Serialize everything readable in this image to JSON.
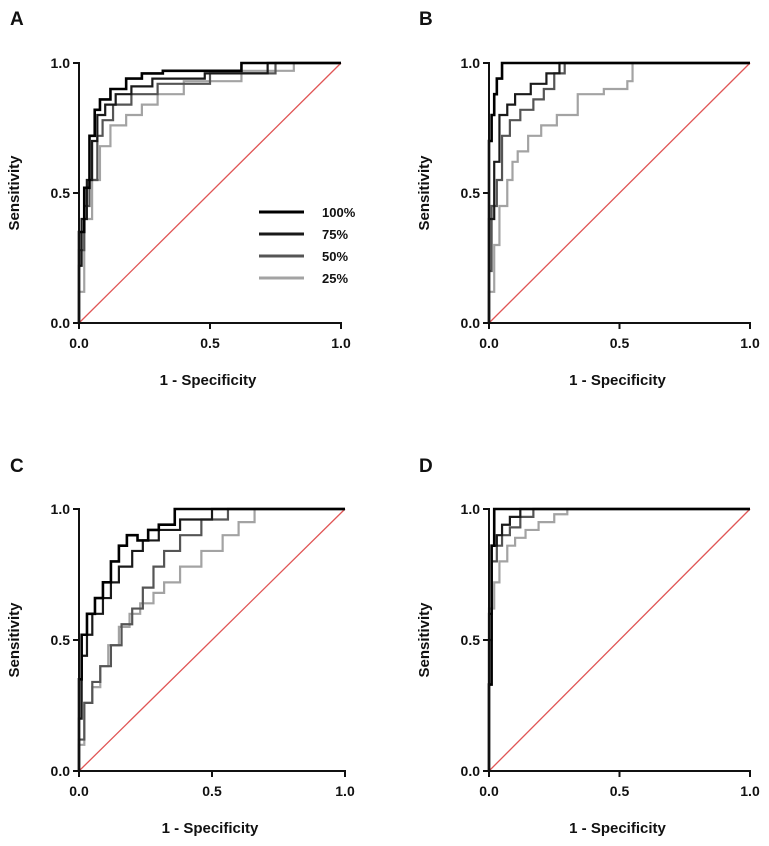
{
  "colors": {
    "series_100": "#000000",
    "series_75": "#1a1a1a",
    "series_50": "#555555",
    "series_25": "#a3a3a3",
    "reference": "#e05555"
  },
  "chart_data": [
    {
      "panel": "A",
      "type": "line",
      "xlabel": "1 - Specificity",
      "ylabel": "Sensitivity",
      "xlim": [
        0,
        1
      ],
      "ylim": [
        0,
        1
      ],
      "xticks": [
        "0.0",
        "0.5",
        "1.0"
      ],
      "yticks": [
        "0.0",
        "0.5",
        "1.0"
      ],
      "grid": false,
      "legend": {
        "placement": "right-center",
        "entries": [
          "100%",
          "75%",
          "50%",
          "25%"
        ]
      },
      "reference_line": {
        "x": [
          0,
          1
        ],
        "y": [
          0,
          1
        ]
      },
      "series": [
        {
          "name": "100%",
          "x": [
            0,
            0,
            0.02,
            0.02,
            0.04,
            0.04,
            0.06,
            0.06,
            0.08,
            0.08,
            0.12,
            0.12,
            0.18,
            0.18,
            0.24,
            0.24,
            0.32,
            0.32,
            0.62,
            0.62,
            1.0
          ],
          "y": [
            0,
            0.35,
            0.35,
            0.52,
            0.52,
            0.72,
            0.72,
            0.82,
            0.82,
            0.86,
            0.86,
            0.9,
            0.9,
            0.94,
            0.94,
            0.96,
            0.96,
            0.97,
            0.97,
            1.0,
            1.0
          ]
        },
        {
          "name": "75%",
          "x": [
            0,
            0,
            0.01,
            0.01,
            0.03,
            0.03,
            0.05,
            0.05,
            0.07,
            0.07,
            0.1,
            0.1,
            0.14,
            0.14,
            0.2,
            0.2,
            0.28,
            0.28,
            0.48,
            0.48,
            0.72,
            0.72,
            1.0
          ],
          "y": [
            0,
            0.22,
            0.22,
            0.4,
            0.4,
            0.55,
            0.55,
            0.7,
            0.7,
            0.8,
            0.8,
            0.84,
            0.84,
            0.88,
            0.88,
            0.91,
            0.91,
            0.94,
            0.94,
            0.96,
            0.96,
            1.0,
            1.0
          ]
        },
        {
          "name": "50%",
          "x": [
            0,
            0,
            0.02,
            0.02,
            0.04,
            0.04,
            0.07,
            0.07,
            0.09,
            0.09,
            0.13,
            0.13,
            0.2,
            0.2,
            0.3,
            0.3,
            0.5,
            0.5,
            0.75,
            0.75,
            1.0
          ],
          "y": [
            0,
            0.28,
            0.28,
            0.45,
            0.45,
            0.55,
            0.55,
            0.72,
            0.72,
            0.78,
            0.78,
            0.84,
            0.84,
            0.88,
            0.88,
            0.92,
            0.92,
            0.96,
            0.96,
            1.0,
            1.0
          ]
        },
        {
          "name": "25%",
          "x": [
            0,
            0,
            0.02,
            0.02,
            0.05,
            0.05,
            0.08,
            0.08,
            0.12,
            0.12,
            0.18,
            0.18,
            0.24,
            0.24,
            0.3,
            0.3,
            0.4,
            0.4,
            0.62,
            0.62,
            0.82,
            0.82,
            1.0
          ],
          "y": [
            0,
            0.12,
            0.12,
            0.4,
            0.4,
            0.55,
            0.55,
            0.68,
            0.68,
            0.76,
            0.76,
            0.8,
            0.8,
            0.84,
            0.84,
            0.88,
            0.88,
            0.93,
            0.93,
            0.97,
            0.97,
            1.0,
            1.0
          ]
        }
      ]
    },
    {
      "panel": "B",
      "type": "line",
      "xlabel": "1 - Specificity",
      "ylabel": "Sensitivity",
      "xlim": [
        0,
        1
      ],
      "ylim": [
        0,
        1
      ],
      "xticks": [
        "0.0",
        "0.5",
        "1.0"
      ],
      "yticks": [
        "0.0",
        "0.5",
        "1.0"
      ],
      "grid": false,
      "reference_line": {
        "x": [
          0,
          1
        ],
        "y": [
          0,
          1
        ]
      },
      "series": [
        {
          "name": "100%",
          "x": [
            0,
            0,
            0.01,
            0.01,
            0.02,
            0.02,
            0.03,
            0.03,
            0.05,
            0.05,
            1.0
          ],
          "y": [
            0,
            0.7,
            0.7,
            0.8,
            0.8,
            0.88,
            0.88,
            0.94,
            0.94,
            1.0,
            1.0
          ]
        },
        {
          "name": "75%",
          "x": [
            0,
            0,
            0.02,
            0.02,
            0.04,
            0.04,
            0.07,
            0.07,
            0.1,
            0.1,
            0.16,
            0.16,
            0.22,
            0.22,
            0.27,
            0.27,
            1.0
          ],
          "y": [
            0,
            0.4,
            0.4,
            0.62,
            0.62,
            0.8,
            0.8,
            0.84,
            0.84,
            0.88,
            0.88,
            0.92,
            0.92,
            0.96,
            0.96,
            1.0,
            1.0
          ]
        },
        {
          "name": "50%",
          "x": [
            0,
            0,
            0.01,
            0.01,
            0.03,
            0.03,
            0.05,
            0.05,
            0.08,
            0.08,
            0.12,
            0.12,
            0.17,
            0.17,
            0.21,
            0.21,
            0.25,
            0.25,
            0.29,
            0.29,
            1.0
          ],
          "y": [
            0,
            0.2,
            0.2,
            0.45,
            0.45,
            0.55,
            0.55,
            0.72,
            0.72,
            0.78,
            0.78,
            0.82,
            0.82,
            0.86,
            0.86,
            0.9,
            0.9,
            0.96,
            0.96,
            1.0,
            1.0
          ]
        },
        {
          "name": "25%",
          "x": [
            0,
            0,
            0.02,
            0.02,
            0.04,
            0.04,
            0.07,
            0.07,
            0.09,
            0.09,
            0.11,
            0.11,
            0.15,
            0.15,
            0.2,
            0.2,
            0.26,
            0.26,
            0.34,
            0.34,
            0.44,
            0.44,
            0.53,
            0.53,
            0.55,
            0.55,
            1.0
          ],
          "y": [
            0,
            0.12,
            0.12,
            0.3,
            0.3,
            0.45,
            0.45,
            0.55,
            0.55,
            0.62,
            0.62,
            0.66,
            0.66,
            0.72,
            0.72,
            0.76,
            0.76,
            0.8,
            0.8,
            0.88,
            0.88,
            0.9,
            0.9,
            0.93,
            0.93,
            1.0,
            1.0
          ]
        }
      ]
    },
    {
      "panel": "C",
      "type": "line",
      "xlabel": "1 - Specificity",
      "ylabel": "Sensitivity",
      "xlim": [
        0,
        1
      ],
      "ylim": [
        0,
        1
      ],
      "xticks": [
        "0.0",
        "0.5",
        "1.0"
      ],
      "yticks": [
        "0.0",
        "0.5",
        "1.0"
      ],
      "grid": false,
      "reference_line": {
        "x": [
          0,
          1
        ],
        "y": [
          0,
          1
        ]
      },
      "series": [
        {
          "name": "100%",
          "x": [
            0,
            0,
            0.01,
            0.01,
            0.03,
            0.03,
            0.06,
            0.06,
            0.09,
            0.09,
            0.12,
            0.12,
            0.15,
            0.15,
            0.18,
            0.18,
            0.22,
            0.22,
            0.26,
            0.26,
            0.3,
            0.3,
            0.36,
            0.36,
            1.0
          ],
          "y": [
            0,
            0.35,
            0.35,
            0.52,
            0.52,
            0.6,
            0.6,
            0.66,
            0.66,
            0.72,
            0.72,
            0.8,
            0.8,
            0.86,
            0.86,
            0.9,
            0.9,
            0.88,
            0.88,
            0.92,
            0.92,
            0.94,
            0.94,
            1.0,
            1.0
          ]
        },
        {
          "name": "75%",
          "x": [
            0,
            0,
            0.01,
            0.01,
            0.03,
            0.03,
            0.05,
            0.05,
            0.09,
            0.09,
            0.12,
            0.12,
            0.15,
            0.15,
            0.2,
            0.2,
            0.24,
            0.24,
            0.3,
            0.3,
            0.38,
            0.38,
            0.5,
            0.5,
            1.0
          ],
          "y": [
            0,
            0.2,
            0.2,
            0.44,
            0.44,
            0.52,
            0.52,
            0.6,
            0.6,
            0.66,
            0.66,
            0.72,
            0.72,
            0.78,
            0.78,
            0.84,
            0.84,
            0.88,
            0.88,
            0.92,
            0.92,
            0.96,
            0.96,
            1.0,
            1.0
          ]
        },
        {
          "name": "50%",
          "x": [
            0,
            0,
            0.02,
            0.02,
            0.05,
            0.05,
            0.08,
            0.08,
            0.12,
            0.12,
            0.16,
            0.16,
            0.2,
            0.2,
            0.24,
            0.24,
            0.28,
            0.28,
            0.32,
            0.32,
            0.38,
            0.38,
            0.46,
            0.46,
            0.56,
            0.56,
            1.0
          ],
          "y": [
            0,
            0.12,
            0.12,
            0.26,
            0.26,
            0.34,
            0.34,
            0.4,
            0.4,
            0.48,
            0.48,
            0.56,
            0.56,
            0.62,
            0.62,
            0.7,
            0.7,
            0.78,
            0.78,
            0.84,
            0.84,
            0.9,
            0.9,
            0.96,
            0.96,
            1.0,
            1.0
          ]
        },
        {
          "name": "25%",
          "x": [
            0,
            0,
            0.02,
            0.02,
            0.05,
            0.05,
            0.08,
            0.08,
            0.11,
            0.11,
            0.15,
            0.15,
            0.19,
            0.19,
            0.23,
            0.23,
            0.28,
            0.28,
            0.32,
            0.32,
            0.38,
            0.38,
            0.46,
            0.46,
            0.54,
            0.54,
            0.6,
            0.6,
            0.66,
            0.66,
            1.0
          ],
          "y": [
            0,
            0.1,
            0.1,
            0.26,
            0.26,
            0.32,
            0.32,
            0.4,
            0.4,
            0.48,
            0.48,
            0.55,
            0.55,
            0.6,
            0.6,
            0.64,
            0.64,
            0.68,
            0.68,
            0.72,
            0.72,
            0.78,
            0.78,
            0.84,
            0.84,
            0.9,
            0.9,
            0.95,
            0.95,
            1.0,
            1.0
          ]
        }
      ]
    },
    {
      "panel": "D",
      "type": "line",
      "xlabel": "1 - Specificity",
      "ylabel": "Sensitivity",
      "xlim": [
        0,
        1
      ],
      "ylim": [
        0,
        1
      ],
      "xticks": [
        "0.0",
        "0.5",
        "1.0"
      ],
      "yticks": [
        "0.0",
        "0.5",
        "1.0"
      ],
      "grid": false,
      "reference_line": {
        "x": [
          0,
          1
        ],
        "y": [
          0,
          1
        ]
      },
      "series": [
        {
          "name": "100%",
          "x": [
            0,
            0,
            0.01,
            0.01,
            0.02,
            0.02,
            1.0
          ],
          "y": [
            0,
            0.33,
            0.33,
            0.86,
            0.86,
            1.0,
            1.0
          ]
        },
        {
          "name": "75%",
          "x": [
            0,
            0,
            0.01,
            0.01,
            0.03,
            0.03,
            0.05,
            0.05,
            0.08,
            0.08,
            0.12,
            0.12,
            1.0
          ],
          "y": [
            0,
            0.6,
            0.6,
            0.86,
            0.86,
            0.9,
            0.9,
            0.94,
            0.94,
            0.97,
            0.97,
            1.0,
            1.0
          ]
        },
        {
          "name": "50%",
          "x": [
            0,
            0,
            0.01,
            0.01,
            0.03,
            0.03,
            0.05,
            0.05,
            0.08,
            0.08,
            0.12,
            0.12,
            0.17,
            0.17,
            1.0
          ],
          "y": [
            0,
            0.5,
            0.5,
            0.8,
            0.8,
            0.86,
            0.86,
            0.9,
            0.9,
            0.93,
            0.93,
            0.97,
            0.97,
            1.0,
            1.0
          ]
        },
        {
          "name": "25%",
          "x": [
            0,
            0,
            0.02,
            0.02,
            0.04,
            0.04,
            0.07,
            0.07,
            0.1,
            0.1,
            0.14,
            0.14,
            0.19,
            0.19,
            0.25,
            0.25,
            0.3,
            0.3,
            1.0
          ],
          "y": [
            0,
            0.62,
            0.62,
            0.72,
            0.72,
            0.8,
            0.8,
            0.86,
            0.86,
            0.89,
            0.89,
            0.92,
            0.92,
            0.95,
            0.95,
            0.98,
            0.98,
            1.0,
            1.0
          ]
        }
      ]
    }
  ]
}
